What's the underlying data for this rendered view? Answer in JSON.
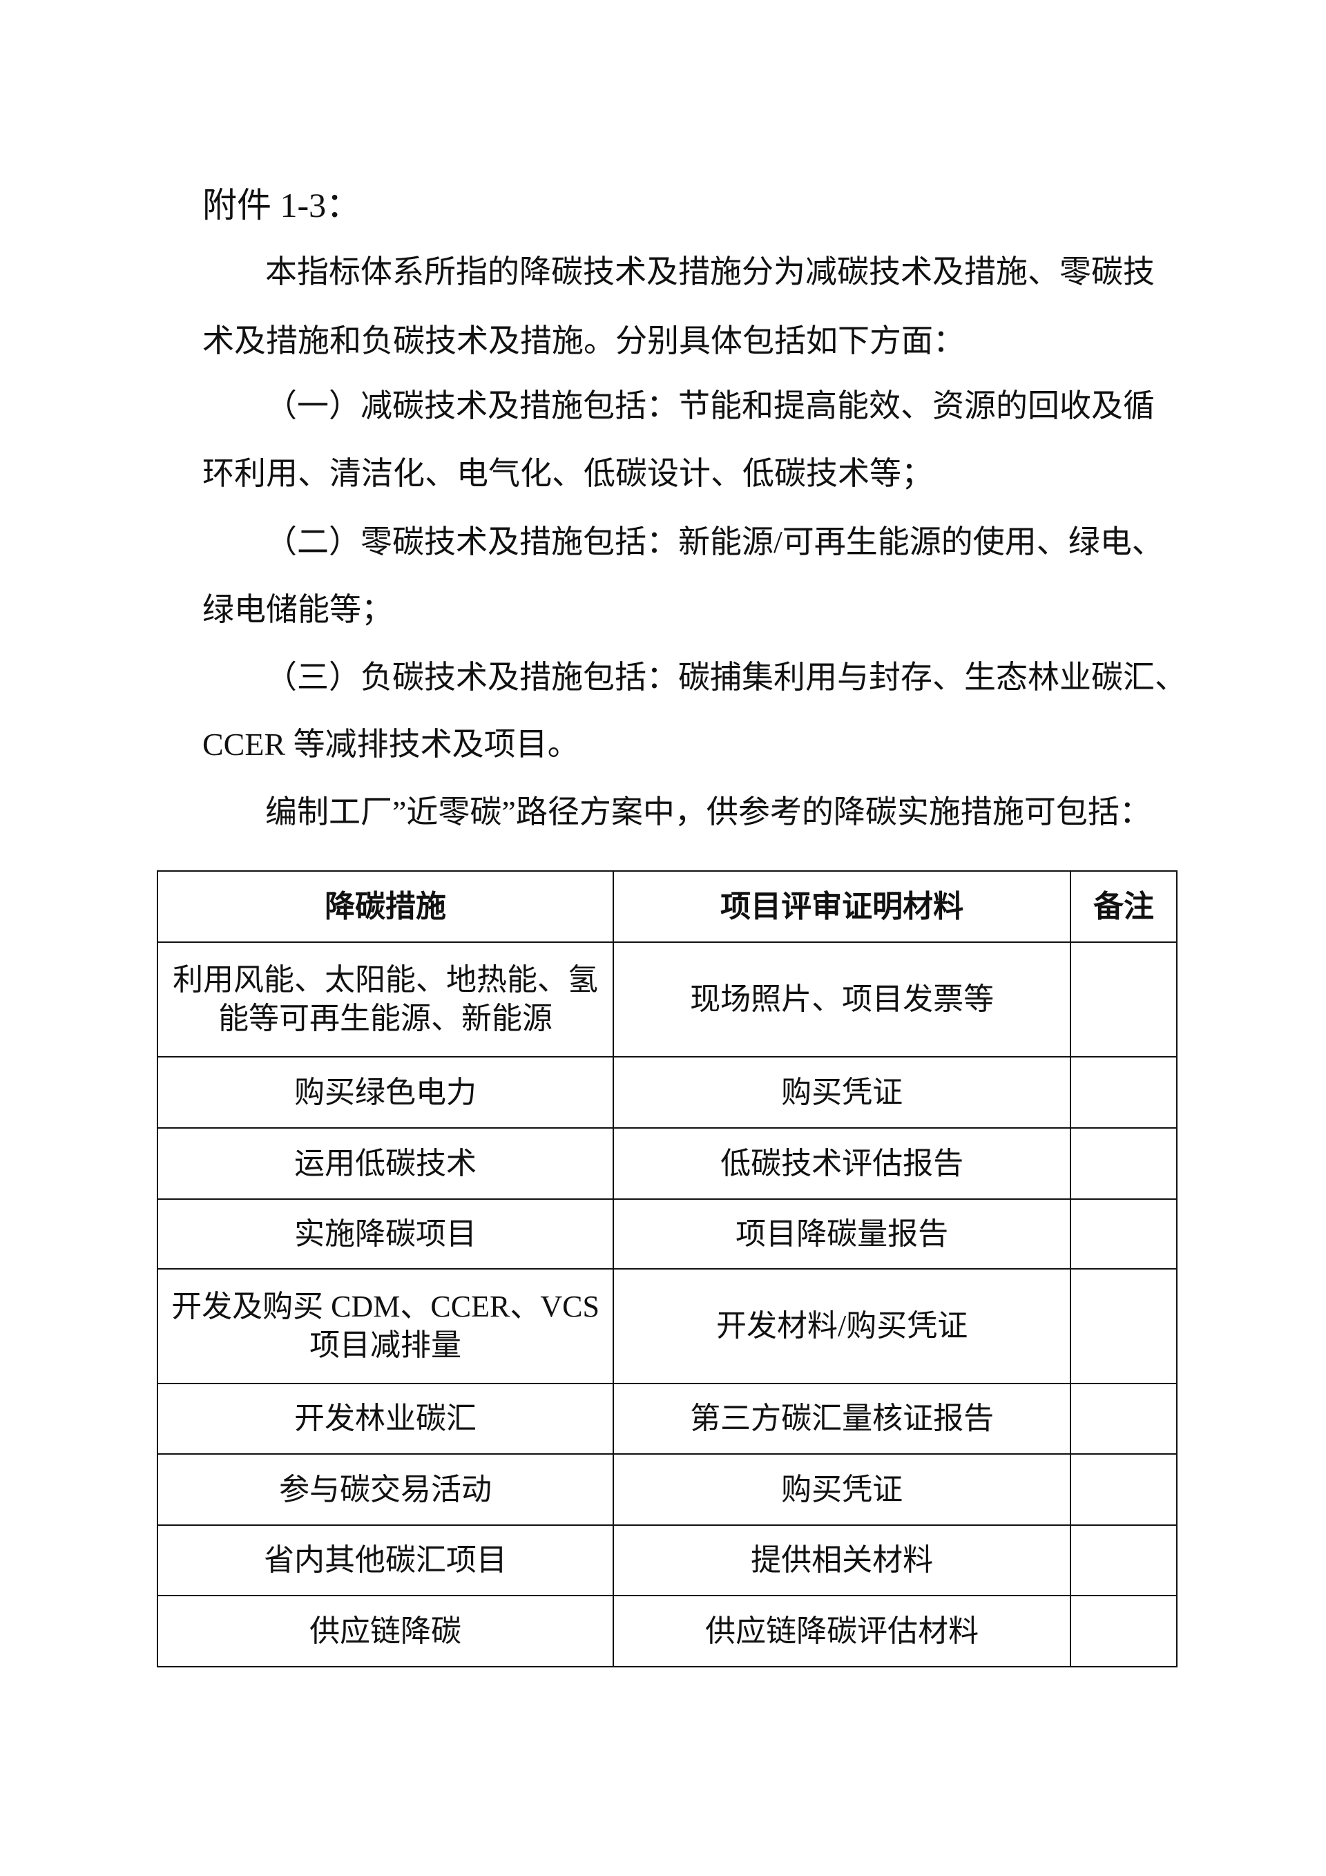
{
  "title": "附件 1-3：",
  "lines": [
    "本指标体系所指的降碳技术及措施分为减碳技术及措施、零碳技",
    "术及措施和负碳技术及措施。分别具体包括如下方面：",
    "（一）减碳技术及措施包括：节能和提高能效、资源的回收及循",
    "环利用、清洁化、电气化、低碳设计、低碳技术等；",
    "（二）零碳技术及措施包括：新能源/可再生能源的使用、绿电、",
    "绿电储能等；",
    "（三）负碳技术及措施包括：碳捕集利用与封存、生态林业碳汇、",
    "CCER 等减排技术及项目。",
    "编制工厂”近零碳”路径方案中，供参考的降碳实施措施可包括："
  ],
  "table": {
    "headers": [
      "降碳措施",
      "项目评审证明材料",
      "备注"
    ],
    "rows": [
      {
        "measure": [
          "利用风能、太阳能、地热能、氢",
          "能等可再生能源、新能源"
        ],
        "evidence": "现场照片、项目发票等",
        "note": ""
      },
      {
        "measure": [
          "购买绿色电力"
        ],
        "evidence": "购买凭证",
        "note": ""
      },
      {
        "measure": [
          "运用低碳技术"
        ],
        "evidence": "低碳技术评估报告",
        "note": ""
      },
      {
        "measure": [
          "实施降碳项目"
        ],
        "evidence": "项目降碳量报告",
        "note": ""
      },
      {
        "measure": [
          "开发及购买 CDM、CCER、VCS",
          "项目减排量"
        ],
        "evidence": "开发材料/购买凭证",
        "note": ""
      },
      {
        "measure": [
          "开发林业碳汇"
        ],
        "evidence": "第三方碳汇量核证报告",
        "note": ""
      },
      {
        "measure": [
          "参与碳交易活动"
        ],
        "evidence": "购买凭证",
        "note": ""
      },
      {
        "measure": [
          "省内其他碳汇项目"
        ],
        "evidence": "提供相关材料",
        "note": ""
      },
      {
        "measure": [
          "供应链降碳"
        ],
        "evidence": "供应链降碳评估材料",
        "note": ""
      }
    ]
  }
}
